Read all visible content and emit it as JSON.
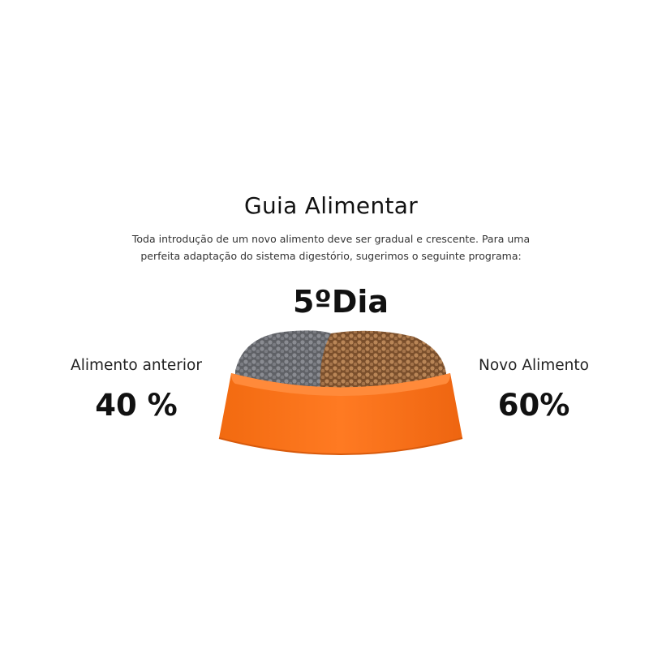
{
  "header": {
    "title": "Guia Alimentar",
    "subtitle_line1": "Toda introdução de um novo alimento deve ser gradual e crescente. Para uma",
    "subtitle_line2": "perfeita adaptação do sistema digestório, sugerimos o seguinte programa:"
  },
  "day_label": "5ºDia",
  "previous_food": {
    "label": "Alimento anterior",
    "value": "40 %",
    "percent": 40,
    "color": "#6e6e72"
  },
  "new_food": {
    "label": "Novo Alimento",
    "value": "60%",
    "percent": 60,
    "color": "#9a6a40"
  },
  "bowl_color": "#f56a12"
}
